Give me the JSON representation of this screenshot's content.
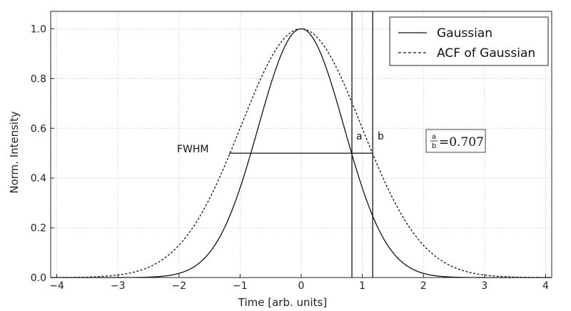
{
  "chart_data": {
    "type": "line",
    "xlabel": "Time [arb. units]",
    "ylabel": "Norm. Intensity",
    "xlim": [
      -4.1,
      4.1
    ],
    "ylim": [
      0.0,
      1.07
    ],
    "x_ticks": [
      -4,
      -3,
      -2,
      -1,
      0,
      1,
      2,
      3,
      4
    ],
    "x_tick_labels": [
      "−4",
      "−3",
      "−2",
      "−1",
      "0",
      "1",
      "2",
      "3",
      "4"
    ],
    "y_ticks": [
      0.0,
      0.2,
      0.4,
      0.6,
      0.8,
      1.0
    ],
    "y_tick_labels": [
      "0.0",
      "0.2",
      "0.4",
      "0.6",
      "0.8",
      "1.0"
    ],
    "grid": true,
    "legend_position": "top-right",
    "series": [
      {
        "name": "Gaussian",
        "style": "solid",
        "sigma": 0.7,
        "amplitude": 1.0,
        "center": 0.0
      },
      {
        "name": "ACF of Gaussian",
        "style": "dashed",
        "sigma": 0.99,
        "amplitude": 1.0,
        "center": 0.0
      }
    ],
    "annotations": {
      "fwhm_label": "FWHM",
      "fwhm_level": 0.5,
      "fwhm_x_range": [
        -1.18,
        1.18
      ],
      "vline_a_x": 0.83,
      "vline_b_x": 1.17,
      "label_a": "a",
      "label_b": "b",
      "ratio_num": "a",
      "ratio_den": "b",
      "ratio_value": "=0.707"
    },
    "colors": {
      "line": "#111111",
      "grid": "#bbbbbb",
      "axis": "#222222",
      "background": "#ffffff"
    }
  }
}
